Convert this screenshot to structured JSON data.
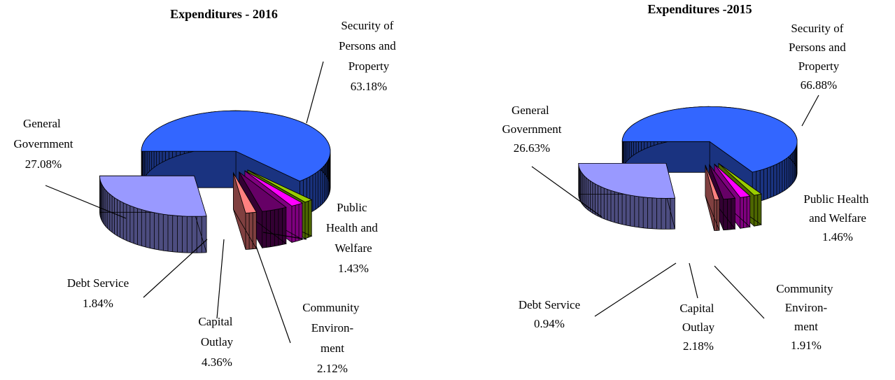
{
  "chart_data": [
    {
      "type": "pie",
      "title": "Expenditures - 2016",
      "categories": [
        "Security of Persons and Property",
        "Public Health and Welfare",
        "Community Environ-ment",
        "Capital Outlay",
        "Debt Service",
        "General Government"
      ],
      "values": [
        63.18,
        1.43,
        2.12,
        4.36,
        1.84,
        27.08
      ],
      "value_labels": [
        "63.18%",
        "1.43%",
        "2.12%",
        "4.36%",
        "1.84%",
        "27.08%"
      ],
      "colors": [
        "#3366ff",
        "#99cc00",
        "#ff00ff",
        "#660066",
        "#ff8080",
        "#9999ff"
      ]
    },
    {
      "type": "pie",
      "title": "Expenditures -2015",
      "categories": [
        "Security of Persons and Property",
        "Public Health and Welfare",
        "Community Environ-ment",
        "Capital Outlay",
        "Debt Service",
        "General Government"
      ],
      "values": [
        66.88,
        1.46,
        1.91,
        2.18,
        0.94,
        26.63
      ],
      "value_labels": [
        "66.88%",
        "1.46%",
        "1.91%",
        "2.18%",
        "0.94%",
        "26.63%"
      ],
      "colors": [
        "#3366ff",
        "#99cc00",
        "#ff00ff",
        "#660066",
        "#ff8080",
        "#9999ff"
      ]
    }
  ]
}
